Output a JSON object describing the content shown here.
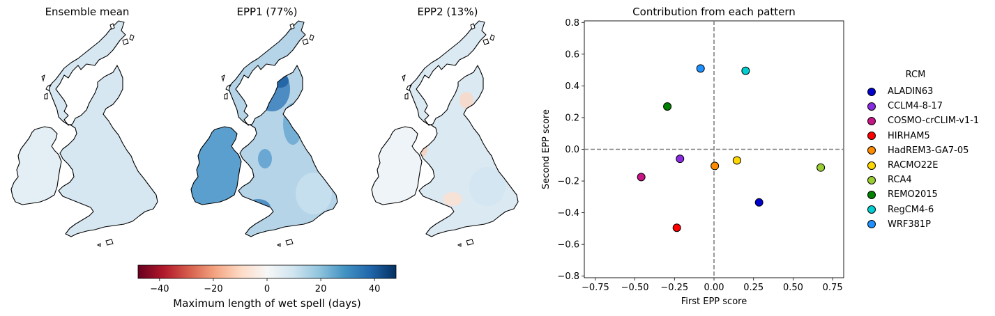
{
  "maps": [
    {
      "title": "Ensemble mean",
      "style": "mean"
    },
    {
      "title": "EPP1 (77%)",
      "style": "epp1"
    },
    {
      "title": "EPP2 (13%)",
      "style": "epp2"
    }
  ],
  "colorbar": {
    "label": "Maximum length of wet spell (days)",
    "ticks": [
      "−40",
      "−20",
      "0",
      "20",
      "40"
    ],
    "tick_values": [
      -40,
      -20,
      0,
      20,
      40
    ],
    "range": [
      -48,
      48
    ],
    "colormap": "RdBu"
  },
  "chart_data": {
    "type": "scatter",
    "title": "Contribution from each pattern",
    "xlabel": "First EPP score",
    "ylabel": "Second EPP score",
    "xlim": [
      -0.82,
      0.82
    ],
    "ylim": [
      -0.81,
      0.81
    ],
    "xticks": [
      -0.75,
      -0.5,
      -0.25,
      0,
      0.25,
      0.5,
      0.75
    ],
    "xtick_labels": [
      "−0.75",
      "−0.50",
      "−0.25",
      "0.00",
      "0.25",
      "0.50",
      "0.75"
    ],
    "yticks": [
      -0.8,
      -0.6,
      -0.4,
      -0.2,
      0,
      0.2,
      0.4,
      0.6,
      0.8
    ],
    "ytick_labels": [
      "−0.8",
      "−0.6",
      "−0.4",
      "−0.2",
      "0.0",
      "0.2",
      "0.4",
      "0.6",
      "0.8"
    ],
    "reference_lines": {
      "x": 0,
      "y": 0,
      "style": "dashed",
      "color": "#808080"
    },
    "legend_title": "RCM",
    "legend_position": "right",
    "points": [
      {
        "name": "ALADIN63",
        "x": 0.285,
        "y": -0.335,
        "color": "#0000cd"
      },
      {
        "name": "CCLM4-8-17",
        "x": -0.215,
        "y": -0.06,
        "color": "#8a2be2"
      },
      {
        "name": "COSMO-crCLIM-v1-1",
        "x": -0.46,
        "y": -0.175,
        "color": "#c71585"
      },
      {
        "name": "HIRHAM5",
        "x": -0.235,
        "y": -0.495,
        "color": "#ff0000"
      },
      {
        "name": "HadREM3-GA7-05",
        "x": 0.005,
        "y": -0.105,
        "color": "#ff8c00"
      },
      {
        "name": "RACMO22E",
        "x": 0.145,
        "y": -0.07,
        "color": "#ffd700"
      },
      {
        "name": "RCA4",
        "x": 0.675,
        "y": -0.115,
        "color": "#9acd32"
      },
      {
        "name": "REMO2015",
        "x": -0.295,
        "y": 0.27,
        "color": "#008000"
      },
      {
        "name": "RegCM4-6",
        "x": 0.2,
        "y": 0.495,
        "color": "#00ced1"
      },
      {
        "name": "WRF381P",
        "x": -0.085,
        "y": 0.51,
        "color": "#1e90ff"
      }
    ]
  }
}
